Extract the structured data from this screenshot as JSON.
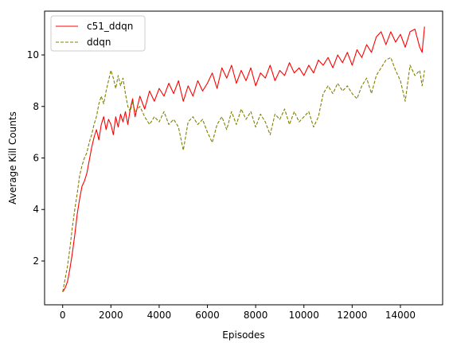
{
  "chart_data": {
    "type": "line",
    "title": "",
    "xlabel": "Episodes",
    "ylabel": "Average Kill Counts",
    "xlim": [
      -750,
      15750
    ],
    "ylim": [
      0.3,
      11.7
    ],
    "xticks": [
      0,
      2000,
      4000,
      6000,
      8000,
      10000,
      12000,
      14000
    ],
    "yticks": [
      2,
      4,
      6,
      8,
      10
    ],
    "grid": false,
    "legend_position": "top-left",
    "series": [
      {
        "name": "c51_ddqn",
        "color": "#ff0000",
        "style": "solid",
        "points": [
          [
            0,
            0.8
          ],
          [
            100,
            0.95
          ],
          [
            200,
            1.2
          ],
          [
            300,
            1.7
          ],
          [
            400,
            2.3
          ],
          [
            500,
            3.0
          ],
          [
            600,
            3.8
          ],
          [
            700,
            4.4
          ],
          [
            800,
            4.9
          ],
          [
            900,
            5.1
          ],
          [
            1000,
            5.4
          ],
          [
            1100,
            5.9
          ],
          [
            1200,
            6.4
          ],
          [
            1300,
            6.8
          ],
          [
            1400,
            7.1
          ],
          [
            1500,
            6.7
          ],
          [
            1600,
            7.3
          ],
          [
            1700,
            7.6
          ],
          [
            1800,
            7.1
          ],
          [
            1900,
            7.5
          ],
          [
            2000,
            7.3
          ],
          [
            2100,
            6.9
          ],
          [
            2200,
            7.6
          ],
          [
            2300,
            7.2
          ],
          [
            2400,
            7.7
          ],
          [
            2500,
            7.4
          ],
          [
            2600,
            7.8
          ],
          [
            2700,
            7.3
          ],
          [
            2800,
            7.9
          ],
          [
            2900,
            8.3
          ],
          [
            3000,
            7.6
          ],
          [
            3200,
            8.4
          ],
          [
            3400,
            7.9
          ],
          [
            3600,
            8.6
          ],
          [
            3800,
            8.2
          ],
          [
            4000,
            8.7
          ],
          [
            4200,
            8.4
          ],
          [
            4400,
            8.9
          ],
          [
            4600,
            8.5
          ],
          [
            4800,
            9.0
          ],
          [
            5000,
            8.2
          ],
          [
            5200,
            8.8
          ],
          [
            5400,
            8.4
          ],
          [
            5600,
            9.0
          ],
          [
            5800,
            8.6
          ],
          [
            6000,
            8.9
          ],
          [
            6200,
            9.3
          ],
          [
            6400,
            8.7
          ],
          [
            6600,
            9.5
          ],
          [
            6800,
            9.1
          ],
          [
            7000,
            9.6
          ],
          [
            7200,
            8.9
          ],
          [
            7400,
            9.4
          ],
          [
            7600,
            9.0
          ],
          [
            7800,
            9.5
          ],
          [
            8000,
            8.8
          ],
          [
            8200,
            9.3
          ],
          [
            8400,
            9.1
          ],
          [
            8600,
            9.6
          ],
          [
            8800,
            9.0
          ],
          [
            9000,
            9.4
          ],
          [
            9200,
            9.2
          ],
          [
            9400,
            9.7
          ],
          [
            9600,
            9.3
          ],
          [
            9800,
            9.5
          ],
          [
            10000,
            9.2
          ],
          [
            10200,
            9.6
          ],
          [
            10400,
            9.3
          ],
          [
            10600,
            9.8
          ],
          [
            10800,
            9.6
          ],
          [
            11000,
            9.9
          ],
          [
            11200,
            9.5
          ],
          [
            11400,
            10.0
          ],
          [
            11600,
            9.7
          ],
          [
            11800,
            10.1
          ],
          [
            12000,
            9.6
          ],
          [
            12200,
            10.2
          ],
          [
            12400,
            9.9
          ],
          [
            12600,
            10.4
          ],
          [
            12800,
            10.1
          ],
          [
            13000,
            10.7
          ],
          [
            13200,
            10.9
          ],
          [
            13400,
            10.4
          ],
          [
            13600,
            10.9
          ],
          [
            13800,
            10.5
          ],
          [
            14000,
            10.8
          ],
          [
            14200,
            10.3
          ],
          [
            14400,
            10.9
          ],
          [
            14600,
            11.0
          ],
          [
            14800,
            10.3
          ],
          [
            14900,
            10.1
          ],
          [
            15000,
            11.1
          ]
        ]
      },
      {
        "name": "ddqn",
        "color": "#808000",
        "style": "dashed",
        "points": [
          [
            0,
            0.8
          ],
          [
            100,
            1.3
          ],
          [
            200,
            1.8
          ],
          [
            300,
            2.5
          ],
          [
            400,
            3.3
          ],
          [
            500,
            4.0
          ],
          [
            600,
            4.6
          ],
          [
            700,
            5.3
          ],
          [
            800,
            5.7
          ],
          [
            900,
            6.0
          ],
          [
            1000,
            6.2
          ],
          [
            1100,
            6.6
          ],
          [
            1200,
            6.9
          ],
          [
            1300,
            7.3
          ],
          [
            1400,
            7.6
          ],
          [
            1500,
            8.1
          ],
          [
            1600,
            8.4
          ],
          [
            1700,
            8.1
          ],
          [
            1800,
            8.6
          ],
          [
            1900,
            9.0
          ],
          [
            2000,
            9.4
          ],
          [
            2100,
            9.1
          ],
          [
            2200,
            8.7
          ],
          [
            2300,
            9.2
          ],
          [
            2400,
            8.8
          ],
          [
            2500,
            9.1
          ],
          [
            2600,
            8.5
          ],
          [
            2700,
            8.0
          ],
          [
            2800,
            7.8
          ],
          [
            2900,
            8.2
          ],
          [
            3000,
            7.8
          ],
          [
            3200,
            8.0
          ],
          [
            3400,
            7.6
          ],
          [
            3600,
            7.3
          ],
          [
            3800,
            7.6
          ],
          [
            4000,
            7.4
          ],
          [
            4200,
            7.8
          ],
          [
            4400,
            7.3
          ],
          [
            4600,
            7.5
          ],
          [
            4800,
            7.2
          ],
          [
            5000,
            6.3
          ],
          [
            5200,
            7.4
          ],
          [
            5400,
            7.6
          ],
          [
            5600,
            7.3
          ],
          [
            5800,
            7.5
          ],
          [
            6000,
            7.0
          ],
          [
            6200,
            6.6
          ],
          [
            6400,
            7.3
          ],
          [
            6600,
            7.6
          ],
          [
            6800,
            7.1
          ],
          [
            7000,
            7.8
          ],
          [
            7200,
            7.3
          ],
          [
            7400,
            7.9
          ],
          [
            7600,
            7.5
          ],
          [
            7800,
            7.8
          ],
          [
            8000,
            7.2
          ],
          [
            8200,
            7.7
          ],
          [
            8400,
            7.4
          ],
          [
            8600,
            6.9
          ],
          [
            8800,
            7.7
          ],
          [
            9000,
            7.5
          ],
          [
            9200,
            7.9
          ],
          [
            9400,
            7.3
          ],
          [
            9600,
            7.8
          ],
          [
            9800,
            7.4
          ],
          [
            10000,
            7.6
          ],
          [
            10200,
            7.8
          ],
          [
            10400,
            7.2
          ],
          [
            10600,
            7.6
          ],
          [
            10800,
            8.5
          ],
          [
            11000,
            8.8
          ],
          [
            11200,
            8.5
          ],
          [
            11400,
            8.9
          ],
          [
            11600,
            8.6
          ],
          [
            11800,
            8.8
          ],
          [
            12000,
            8.5
          ],
          [
            12200,
            8.3
          ],
          [
            12400,
            8.8
          ],
          [
            12600,
            9.1
          ],
          [
            12800,
            8.5
          ],
          [
            13000,
            9.2
          ],
          [
            13200,
            9.5
          ],
          [
            13400,
            9.8
          ],
          [
            13600,
            9.9
          ],
          [
            13800,
            9.4
          ],
          [
            14000,
            9.0
          ],
          [
            14200,
            8.2
          ],
          [
            14400,
            9.6
          ],
          [
            14600,
            9.2
          ],
          [
            14800,
            9.4
          ],
          [
            14900,
            8.8
          ],
          [
            15000,
            9.4
          ]
        ]
      }
    ]
  }
}
